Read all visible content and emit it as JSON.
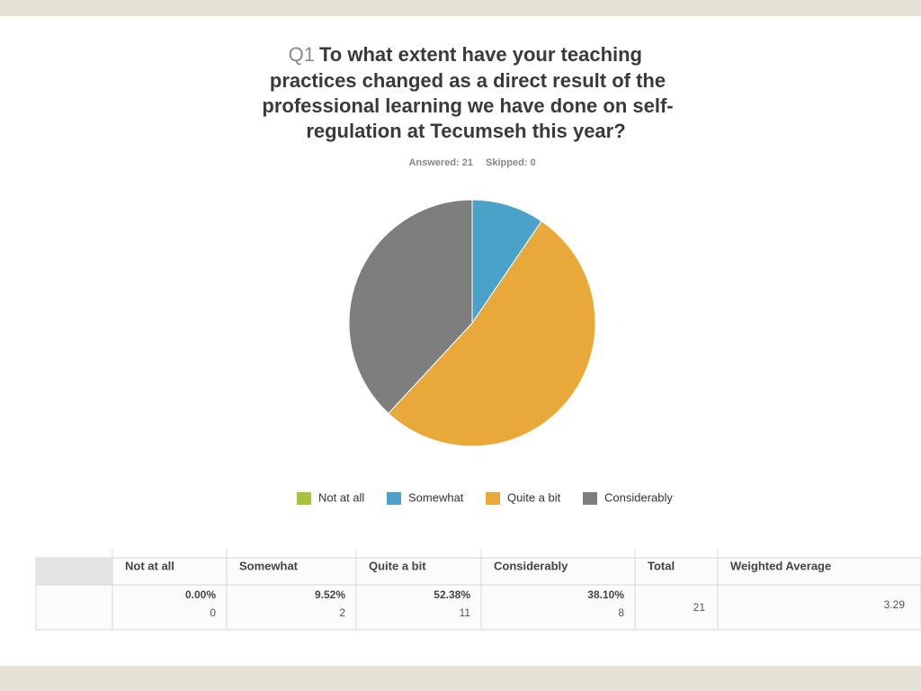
{
  "chart_data": {
    "type": "pie",
    "question_number": "Q1",
    "title_lines": [
      "To what extent have your teaching",
      "practices changed as a direct result of the",
      "professional learning we have done on self-",
      "regulation at Tecumseh this year?"
    ],
    "answered": "Answered: 21",
    "skipped": "Skipped: 0",
    "categories": [
      "Not at all",
      "Somewhat",
      "Quite a bit",
      "Considerably"
    ],
    "values": [
      0,
      9.52,
      52.38,
      38.1
    ],
    "value_labels": [
      "0.00%",
      "9.52%",
      "52.38%",
      "38.10%"
    ],
    "colors": [
      "#a8c23c",
      "#4aa2c9",
      "#e8a93a",
      "#7e7e7e"
    ],
    "legend": "bottom"
  },
  "table": {
    "headers": [
      "Not at all",
      "Somewhat",
      "Quite a bit",
      "Considerably",
      "Total",
      "Weighted Average"
    ],
    "counts": [
      0,
      2,
      11,
      8
    ],
    "total": 21,
    "weighted_average": 3.29
  }
}
